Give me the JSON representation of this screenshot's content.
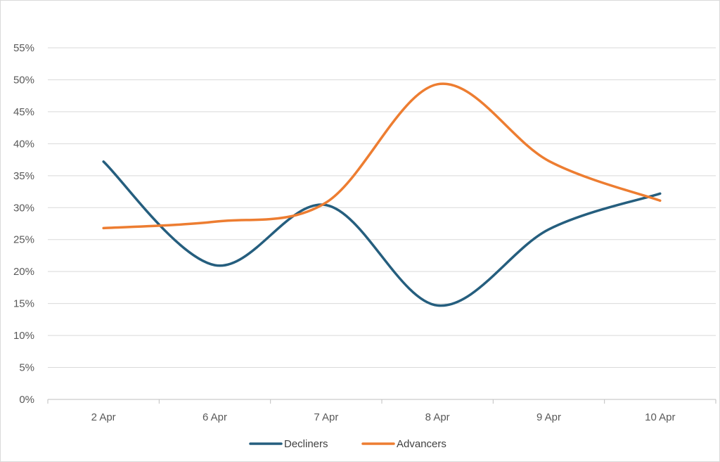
{
  "chart_data": {
    "type": "line",
    "smooth": true,
    "categories": [
      "2 Apr",
      "6 Apr",
      "7 Apr",
      "8 Apr",
      "9 Apr",
      "10 Apr"
    ],
    "series": [
      {
        "name": "Decliners",
        "color": "#255E7E",
        "values": [
          37.2,
          21.0,
          30.4,
          14.7,
          26.6,
          32.2
        ]
      },
      {
        "name": "Advancers",
        "color": "#ED7D31",
        "values": [
          26.8,
          27.8,
          30.8,
          49.3,
          37.3,
          31.1
        ]
      }
    ],
    "y_ticks": [
      "0%",
      "5%",
      "10%",
      "15%",
      "20%",
      "25%",
      "30%",
      "35%",
      "40%",
      "45%",
      "50%",
      "55%"
    ],
    "ylim": [
      0,
      55
    ],
    "y_unit": "%",
    "grid": "horizontal",
    "legend_position": "bottom",
    "title": "",
    "xlabel": "",
    "ylabel": ""
  },
  "colors": {
    "grid": "#d9d9d9",
    "axis": "#bfbfbf",
    "text": "#595959"
  }
}
